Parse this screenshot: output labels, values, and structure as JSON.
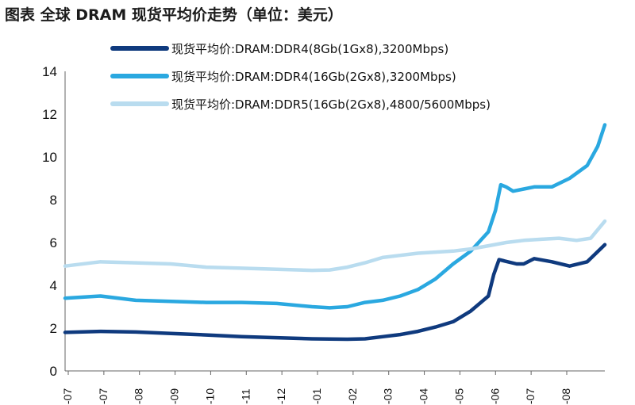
{
  "title": "图表 全球 DRAM 现货平均价走势（单位：美元）",
  "colors": {
    "ddr4_8gb": "#0f3a7e",
    "ddr4_16gb": "#2aa8e0",
    "ddr5_16gb": "#b9dcef",
    "axis": "#666666"
  },
  "chart_data": {
    "type": "line",
    "title": "全球 DRAM 现货平均价走势（单位：美元）",
    "xlabel": "",
    "ylabel": "",
    "ylim": [
      0,
      14
    ],
    "yticks": [
      0,
      2,
      4,
      6,
      8,
      10,
      12,
      14
    ],
    "xticks": [
      "-07",
      "-07",
      "-08",
      "-09",
      "-10",
      "-11",
      "-12",
      "-01",
      "-02",
      "-03",
      "-04",
      "-05",
      "-06",
      "-07",
      "-08"
    ],
    "grid": false,
    "legend_position": "top",
    "series": [
      {
        "name": "现货平均价:DRAM:DDR4(8Gb(1Gx8),3200Mbps)",
        "color_key": "ddr4_8gb",
        "points": [
          [
            0,
            1.8
          ],
          [
            1,
            1.85
          ],
          [
            2,
            1.82
          ],
          [
            3,
            1.75
          ],
          [
            4,
            1.68
          ],
          [
            5,
            1.6
          ],
          [
            6,
            1.55
          ],
          [
            7,
            1.5
          ],
          [
            8,
            1.48
          ],
          [
            8.5,
            1.5
          ],
          [
            9,
            1.6
          ],
          [
            9.5,
            1.7
          ],
          [
            10,
            1.85
          ],
          [
            10.5,
            2.05
          ],
          [
            11,
            2.3
          ],
          [
            11.5,
            2.8
          ],
          [
            12,
            3.5
          ],
          [
            12.15,
            4.5
          ],
          [
            12.3,
            5.2
          ],
          [
            12.8,
            5.0
          ],
          [
            13,
            5.0
          ],
          [
            13.3,
            5.25
          ],
          [
            13.8,
            5.1
          ],
          [
            14.3,
            4.9
          ],
          [
            14.8,
            5.1
          ],
          [
            15.3,
            5.9
          ]
        ]
      },
      {
        "name": "现货平均价:DRAM:DDR4(16Gb(2Gx8),3200Mbps)",
        "color_key": "ddr4_16gb",
        "points": [
          [
            0,
            3.4
          ],
          [
            1,
            3.5
          ],
          [
            2,
            3.3
          ],
          [
            3,
            3.25
          ],
          [
            4,
            3.2
          ],
          [
            5,
            3.2
          ],
          [
            6,
            3.15
          ],
          [
            7,
            3.0
          ],
          [
            7.5,
            2.95
          ],
          [
            8,
            3.0
          ],
          [
            8.5,
            3.2
          ],
          [
            9,
            3.3
          ],
          [
            9.5,
            3.5
          ],
          [
            10,
            3.8
          ],
          [
            10.5,
            4.3
          ],
          [
            11,
            5.0
          ],
          [
            11.5,
            5.6
          ],
          [
            12,
            6.5
          ],
          [
            12.2,
            7.5
          ],
          [
            12.35,
            8.7
          ],
          [
            12.5,
            8.6
          ],
          [
            12.7,
            8.4
          ],
          [
            13,
            8.5
          ],
          [
            13.3,
            8.6
          ],
          [
            13.8,
            8.6
          ],
          [
            14.3,
            9.0
          ],
          [
            14.8,
            9.6
          ],
          [
            15.1,
            10.5
          ],
          [
            15.3,
            11.5
          ]
        ]
      },
      {
        "name": "现货平均价:DRAM:DDR5(16Gb(2Gx8),4800/5600Mbps)",
        "color_key": "ddr5_16gb",
        "points": [
          [
            0,
            4.9
          ],
          [
            1,
            5.1
          ],
          [
            2,
            5.05
          ],
          [
            3,
            5.0
          ],
          [
            4,
            4.85
          ],
          [
            5,
            4.8
          ],
          [
            6,
            4.75
          ],
          [
            7,
            4.7
          ],
          [
            7.5,
            4.72
          ],
          [
            8,
            4.85
          ],
          [
            8.5,
            5.05
          ],
          [
            9,
            5.3
          ],
          [
            9.5,
            5.4
          ],
          [
            10,
            5.5
          ],
          [
            10.5,
            5.55
          ],
          [
            11,
            5.6
          ],
          [
            11.5,
            5.7
          ],
          [
            12,
            5.85
          ],
          [
            12.5,
            6.0
          ],
          [
            13,
            6.1
          ],
          [
            13.5,
            6.15
          ],
          [
            14,
            6.2
          ],
          [
            14.5,
            6.1
          ],
          [
            14.9,
            6.2
          ],
          [
            15.1,
            6.6
          ],
          [
            15.3,
            7.0
          ]
        ]
      }
    ]
  }
}
